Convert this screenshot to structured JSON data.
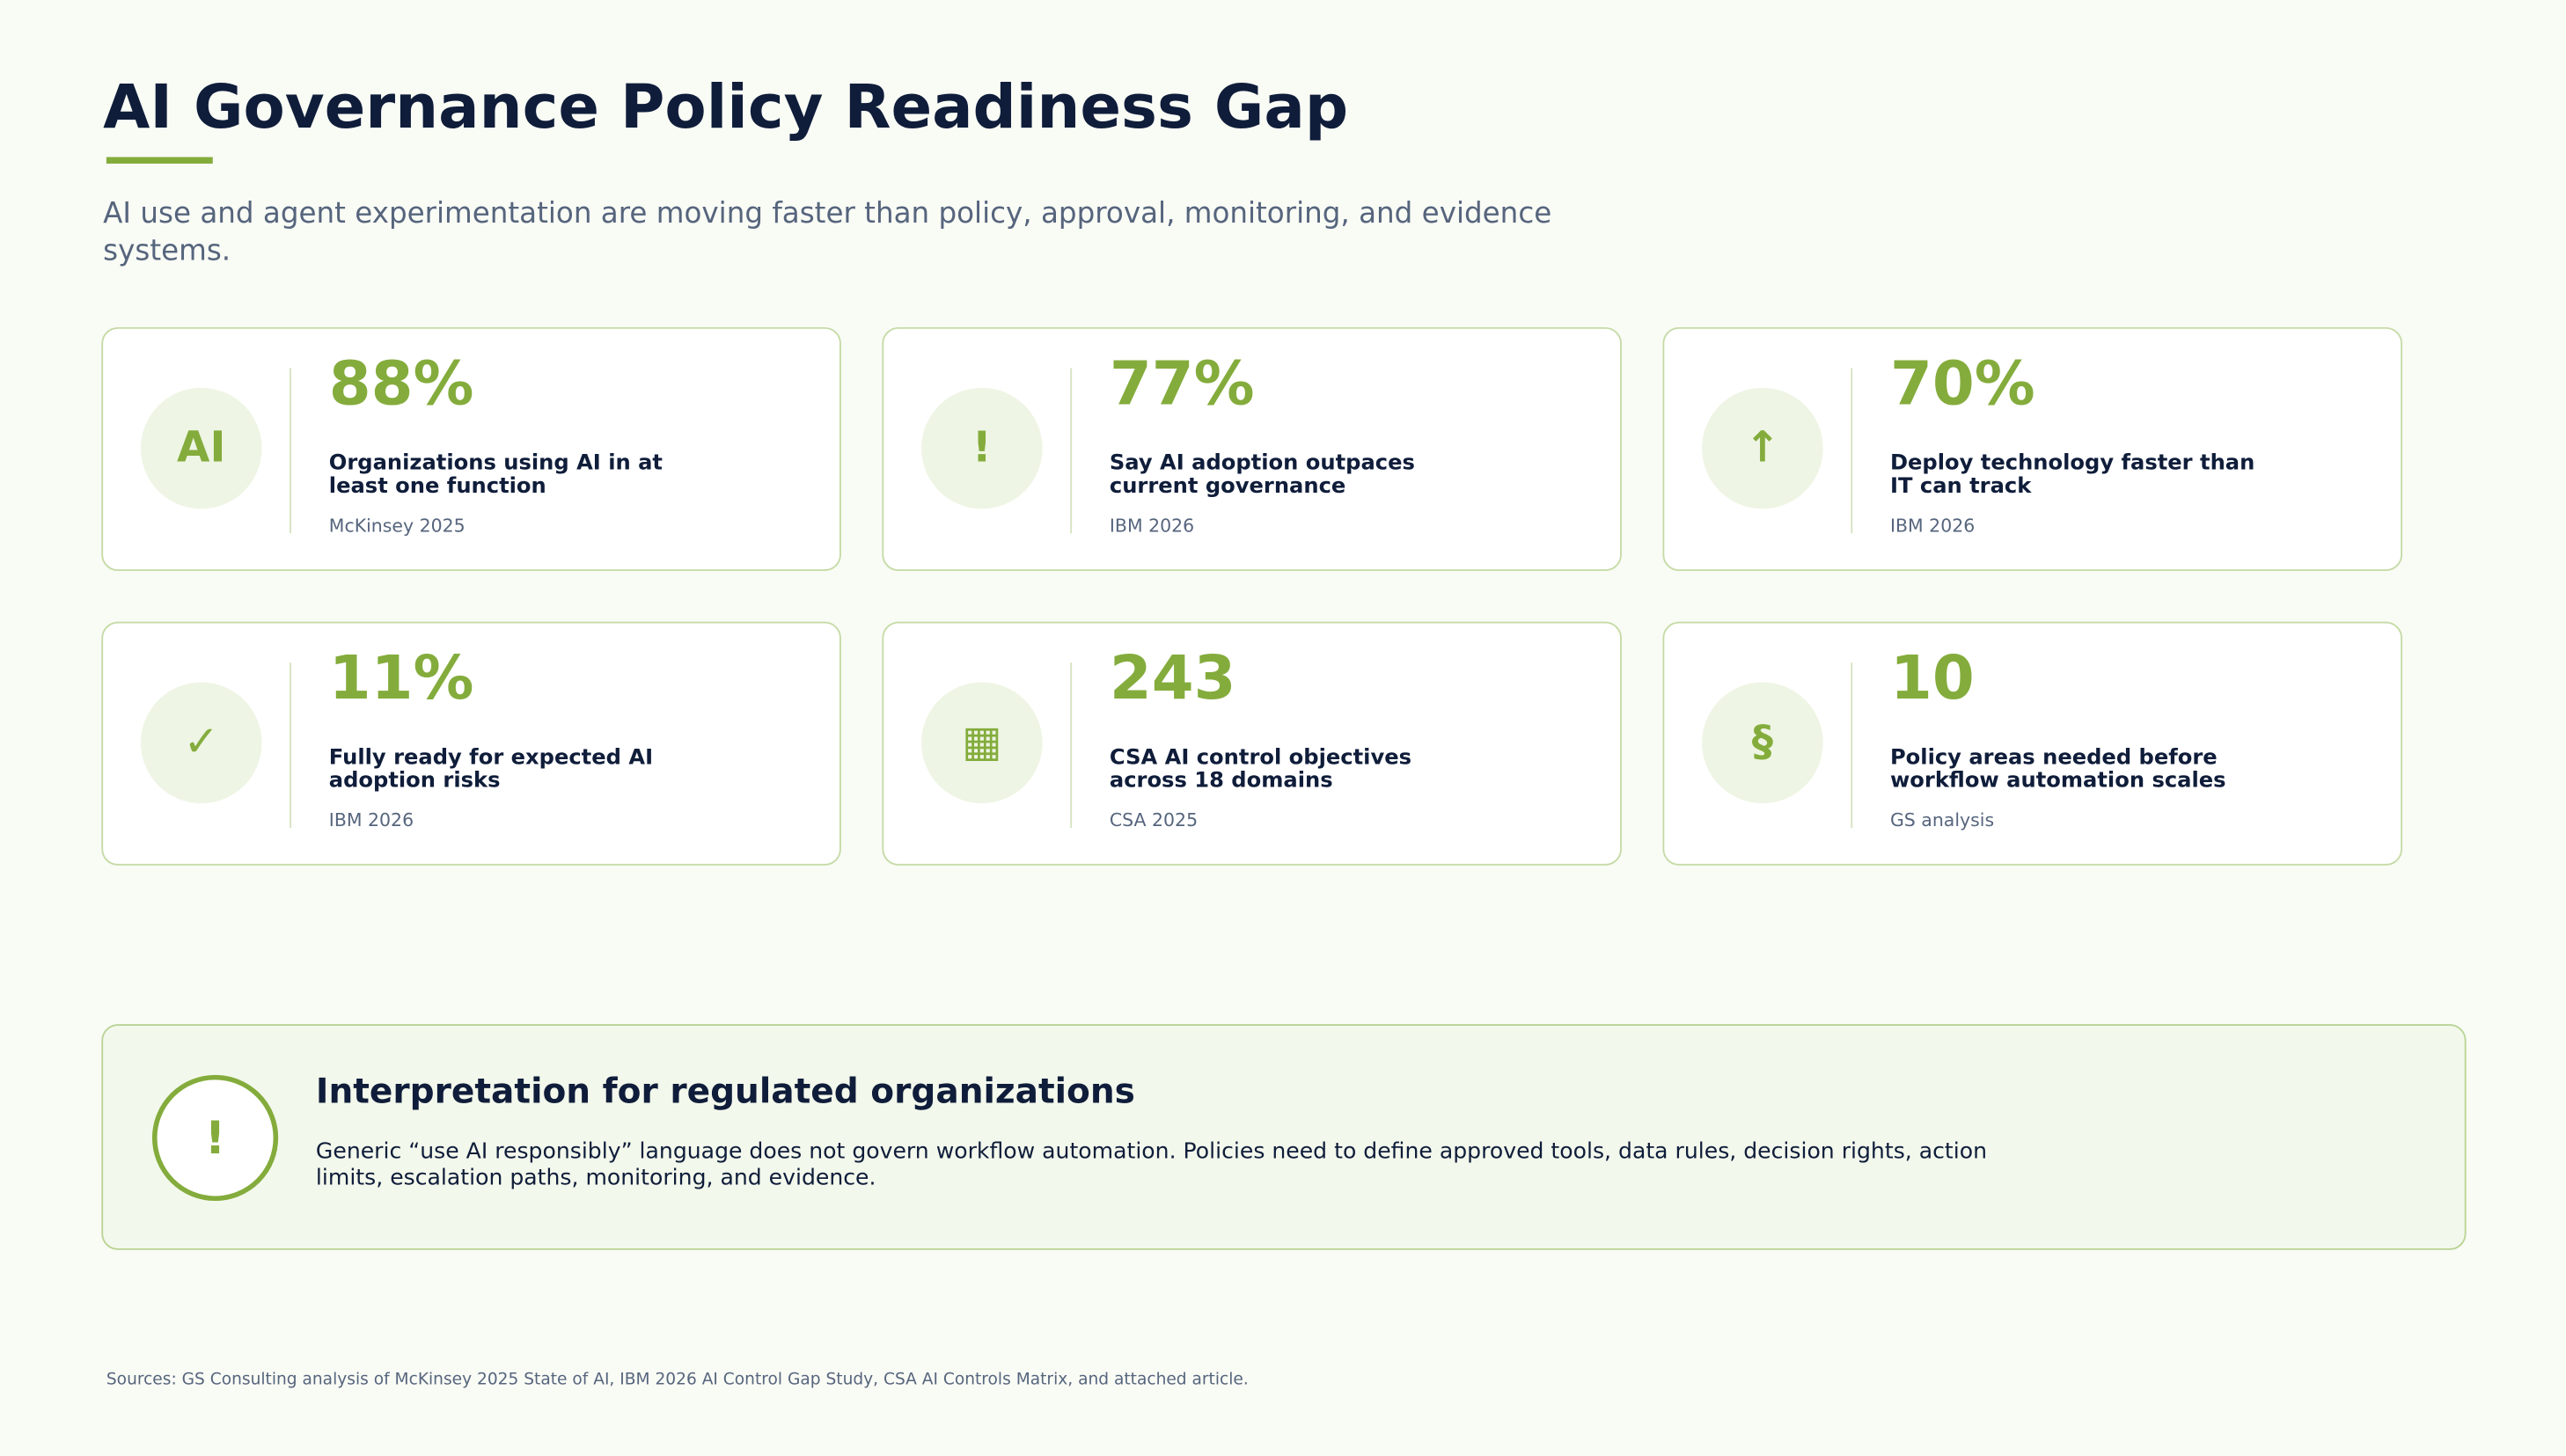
{
  "header": {
    "title": "AI Governance Policy Readiness Gap",
    "subtitle": "AI use and agent experimentation are moving faster than policy, approval, monitoring, and evidence systems."
  },
  "cards": [
    {
      "icon": "AI",
      "value": "88%",
      "label": "Organizations using AI in at least one function",
      "source": "McKinsey 2025"
    },
    {
      "icon": "!",
      "value": "77%",
      "label": "Say AI adoption outpaces current governance",
      "source": "IBM 2026"
    },
    {
      "icon": "↑",
      "value": "70%",
      "label": "Deploy technology faster than IT can track",
      "source": "IBM 2026"
    },
    {
      "icon": "✓",
      "value": "11%",
      "label": "Fully ready for expected AI adoption risks",
      "source": "IBM 2026"
    },
    {
      "icon": "▦",
      "value": "243",
      "label": "CSA AI control objectives across 18 domains",
      "source": "CSA 2025"
    },
    {
      "icon": "§",
      "value": "10",
      "label": "Policy areas needed before workflow automation scales",
      "source": "GS analysis"
    }
  ],
  "callout": {
    "icon": "!",
    "title": "Interpretation for regulated organizations",
    "text": "Generic “use AI responsibly” language does not govern workflow automation. Policies need to define approved tools, data rules, decision rights, action limits, escalation paths, monitoring, and evidence."
  },
  "footer": {
    "sources": "Sources: GS Consulting analysis of McKinsey 2025 State of AI, IBM 2026 AI Control Gap Study, CSA AI Controls Matrix, and attached article."
  }
}
